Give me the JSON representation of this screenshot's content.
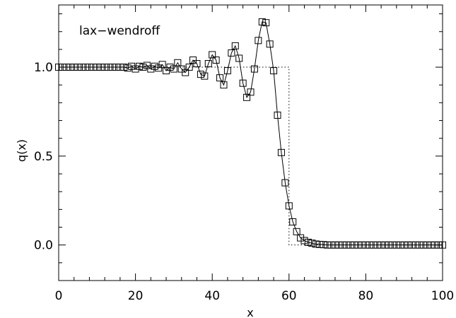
{
  "chart_data": {
    "type": "line",
    "annotation": "lax−wendroff",
    "xlabel": "x",
    "ylabel": "q(x)",
    "xlim": [
      0,
      100
    ],
    "ylim": [
      -0.2,
      1.35
    ],
    "xticks": [
      "0",
      "20",
      "40",
      "60",
      "80",
      "100"
    ],
    "yticks": [
      "0.0",
      "0.5",
      "1.0"
    ],
    "grid": false,
    "series": [
      {
        "style": "dotted-step",
        "x": [
          0,
          40,
          40,
          60,
          60,
          100
        ],
        "y": [
          1.0,
          1.0,
          1.0,
          1.0,
          0.0,
          0.0
        ]
      },
      {
        "style": "solid-line-square-markers",
        "x": [
          0,
          1,
          2,
          3,
          4,
          5,
          6,
          7,
          8,
          9,
          10,
          11,
          12,
          13,
          14,
          15,
          16,
          17,
          18,
          19,
          20,
          21,
          22,
          23,
          24,
          25,
          26,
          27,
          28,
          29,
          30,
          31,
          32,
          33,
          34,
          35,
          36,
          37,
          38,
          39,
          40,
          41,
          42,
          43,
          44,
          45,
          46,
          47,
          48,
          49,
          50,
          51,
          52,
          53,
          54,
          55,
          56,
          57,
          58,
          59,
          60,
          61,
          62,
          63,
          64,
          65,
          66,
          67,
          68,
          69,
          70,
          71,
          72,
          73,
          74,
          75,
          76,
          77,
          78,
          79,
          80,
          81,
          82,
          83,
          84,
          85,
          86,
          87,
          88,
          89,
          90,
          91,
          92,
          93,
          94,
          95,
          96,
          97,
          98,
          99,
          100
        ],
        "y": [
          1.0,
          1.0,
          1.0,
          1.0,
          1.0,
          1.0,
          1.0,
          1.0,
          1.0,
          1.0,
          1.0,
          1.0,
          1.0,
          1.0,
          1.0,
          1.0,
          1.0,
          1.0,
          0.995,
          1.005,
          0.99,
          1.005,
          1.0,
          1.01,
          0.99,
          1.005,
          0.995,
          1.015,
          0.98,
          1.0,
          0.99,
          1.025,
          0.99,
          0.97,
          1.0,
          1.04,
          1.02,
          0.96,
          0.95,
          1.02,
          1.07,
          1.04,
          0.94,
          0.9,
          0.98,
          1.08,
          1.12,
          1.05,
          0.91,
          0.83,
          0.86,
          0.99,
          1.15,
          1.255,
          1.25,
          1.13,
          0.98,
          0.73,
          0.52,
          0.35,
          0.22,
          0.13,
          0.075,
          0.04,
          0.025,
          0.015,
          0.01,
          0.005,
          0.003,
          0.002,
          0.0,
          0.0,
          0.0,
          0.0,
          0.0,
          0.0,
          0.0,
          0.0,
          0.0,
          0.0,
          0.0,
          0.0,
          0.0,
          0.0,
          0.0,
          0.0,
          0.0,
          0.0,
          0.0,
          0.0,
          0.0,
          0.0,
          0.0,
          0.0,
          0.0,
          0.0,
          0.0,
          0.0,
          0.0,
          0.0,
          0.0
        ]
      }
    ]
  }
}
